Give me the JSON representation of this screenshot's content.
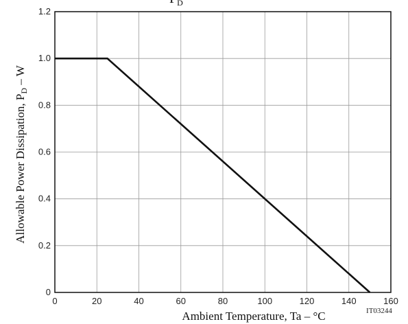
{
  "chart_data": {
    "type": "line",
    "title": "P",
    "title_subscript": "D",
    "xlabel": "Ambient Temperature, Ta  –  °C",
    "ylabel": {
      "text": "Allowable Power Dissipation, P",
      "subscript": "D",
      "unit_suffix": "  –  W"
    },
    "x_ticks": [
      "0",
      "20",
      "40",
      "60",
      "80",
      "100",
      "120",
      "140",
      "160"
    ],
    "y_ticks": [
      "0",
      "0.2",
      "0.4",
      "0.6",
      "0.8",
      "1.0",
      "1.2"
    ],
    "xlim": [
      0,
      160
    ],
    "ylim": [
      0,
      1.2
    ],
    "grid": true,
    "series": [
      {
        "x": [
          0,
          25,
          150
        ],
        "y": [
          1.0,
          1.0,
          0
        ]
      }
    ],
    "figure_code": "IT03244"
  },
  "colors": {
    "line": "#111111",
    "grid": "#9a9a9a",
    "frame": "#111111"
  }
}
